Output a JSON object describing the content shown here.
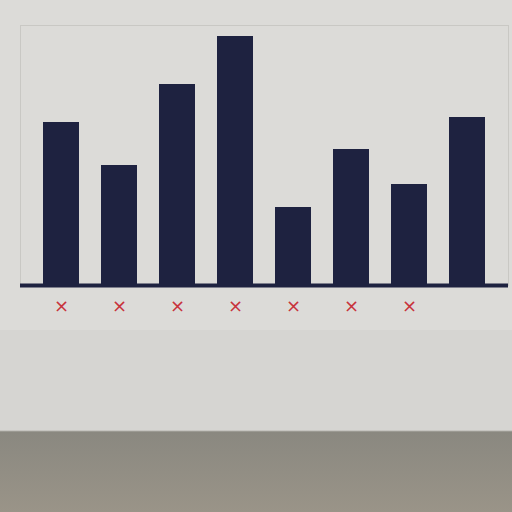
{
  "chart_data": {
    "type": "bar",
    "categories": [
      "×",
      "×",
      "×",
      "×",
      "×",
      "×",
      "×",
      null
    ],
    "values": [
      163,
      120,
      201,
      249,
      78,
      136,
      101,
      168
    ],
    "color": "#1e2240",
    "ylim": [
      0,
      260
    ],
    "yticks": [],
    "grid": false,
    "tick_labels": "x"
  }
}
